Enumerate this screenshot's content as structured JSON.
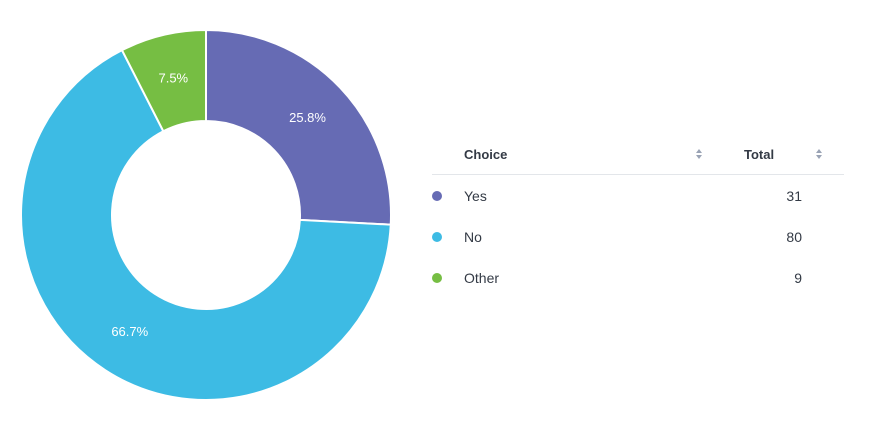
{
  "chart_data": {
    "type": "pie",
    "variant": "donut",
    "categories": [
      "Yes",
      "No",
      "Other"
    ],
    "values": [
      31,
      80,
      9
    ],
    "percent_labels": [
      "25.8%",
      "66.7%",
      "7.5%"
    ],
    "colors": [
      "#666bb4",
      "#3dbbe4",
      "#76be43"
    ]
  },
  "table": {
    "headers": {
      "choice": "Choice",
      "total": "Total"
    },
    "rows": [
      {
        "choice": "Yes",
        "total": "31",
        "color": "#666bb4"
      },
      {
        "choice": "No",
        "total": "80",
        "color": "#3dbbe4"
      },
      {
        "choice": "Other",
        "total": "9",
        "color": "#76be43"
      }
    ]
  }
}
